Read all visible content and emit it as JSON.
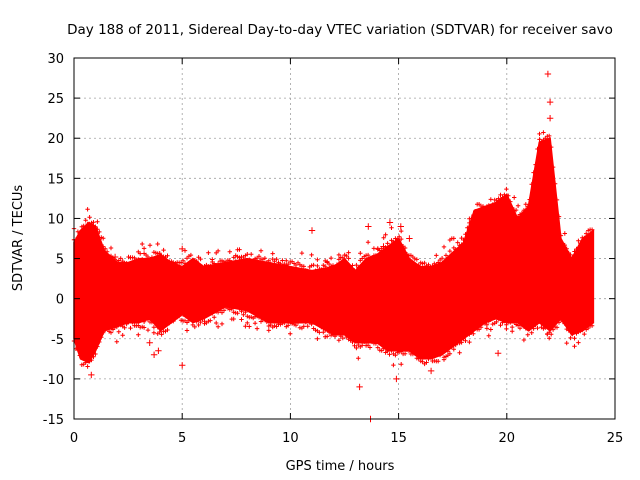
{
  "chart_data": {
    "type": "scatter",
    "title": "Day 188 of 2011, Sidereal Day-to-day VTEC variation (SDTVAR) for receiver savo",
    "xlabel": "GPS time / hours",
    "ylabel": "SDTVAR / TECUs",
    "xlim": [
      0,
      25
    ],
    "ylim": [
      -15,
      30
    ],
    "xticks": [
      0,
      5,
      10,
      15,
      20,
      25
    ],
    "yticks": [
      -15,
      -10,
      -5,
      0,
      5,
      10,
      15,
      20,
      25,
      30
    ],
    "grid": true,
    "marker": "+",
    "color": "#ff0000",
    "band": [
      [
        0.0,
        7.0,
        -5.0
      ],
      [
        0.3,
        8.5,
        -7.5
      ],
      [
        0.7,
        9.5,
        -8.0
      ],
      [
        1.0,
        9.0,
        -6.5
      ],
      [
        1.4,
        6.0,
        -4.0
      ],
      [
        2.0,
        4.5,
        -3.5
      ],
      [
        2.5,
        4.5,
        -3.0
      ],
      [
        3.0,
        5.0,
        -3.0
      ],
      [
        3.5,
        5.0,
        -2.5
      ],
      [
        4.0,
        5.5,
        -4.0
      ],
      [
        4.5,
        4.5,
        -3.0
      ],
      [
        5.0,
        4.0,
        -2.0
      ],
      [
        5.5,
        5.0,
        -3.0
      ],
      [
        6.0,
        4.0,
        -2.5
      ],
      [
        7.0,
        4.5,
        -1.0
      ],
      [
        8.0,
        5.0,
        -1.5
      ],
      [
        9.0,
        4.5,
        -3.0
      ],
      [
        10.0,
        4.0,
        -3.0
      ],
      [
        11.0,
        3.5,
        -3.0
      ],
      [
        12.0,
        4.0,
        -4.5
      ],
      [
        12.5,
        5.0,
        -4.5
      ],
      [
        13.0,
        3.5,
        -5.5
      ],
      [
        13.5,
        5.0,
        -5.5
      ],
      [
        14.0,
        5.5,
        -5.5
      ],
      [
        14.5,
        6.5,
        -6.5
      ],
      [
        15.0,
        7.5,
        -6.5
      ],
      [
        15.5,
        5.0,
        -6.5
      ],
      [
        16.0,
        4.0,
        -7.5
      ],
      [
        16.5,
        4.0,
        -7.5
      ],
      [
        17.0,
        4.5,
        -7.0
      ],
      [
        18.0,
        7.0,
        -5.0
      ],
      [
        18.5,
        11.0,
        -4.0
      ],
      [
        19.0,
        11.5,
        -3.0
      ],
      [
        19.5,
        12.0,
        -2.5
      ],
      [
        20.0,
        13.0,
        -3.0
      ],
      [
        20.5,
        10.0,
        -3.0
      ],
      [
        21.0,
        11.5,
        -4.0
      ],
      [
        21.5,
        19.5,
        -3.0
      ],
      [
        22.0,
        20.0,
        -4.0
      ],
      [
        22.5,
        7.5,
        -2.5
      ],
      [
        23.0,
        5.0,
        -4.5
      ],
      [
        23.5,
        7.5,
        -4.0
      ],
      [
        24.0,
        8.5,
        -3.0
      ]
    ],
    "outliers": [
      [
        0.8,
        -9.5
      ],
      [
        1.9,
        5.2
      ],
      [
        3.5,
        -5.5
      ],
      [
        3.9,
        -6.5
      ],
      [
        3.7,
        -7.0
      ],
      [
        5.0,
        -8.3
      ],
      [
        5.0,
        6.2
      ],
      [
        11.0,
        8.5
      ],
      [
        13.6,
        9.0
      ],
      [
        13.7,
        -15.0
      ],
      [
        14.3,
        6.5
      ],
      [
        14.6,
        9.5
      ],
      [
        14.9,
        7.0
      ],
      [
        15.1,
        9.0
      ],
      [
        15.5,
        7.5
      ],
      [
        19.6,
        -6.8
      ],
      [
        21.9,
        28.0
      ],
      [
        22.0,
        24.5
      ],
      [
        22.0,
        22.5
      ],
      [
        16.5,
        -9.0
      ],
      [
        13.2,
        -11.0
      ],
      [
        14.9,
        -10.0
      ]
    ]
  }
}
